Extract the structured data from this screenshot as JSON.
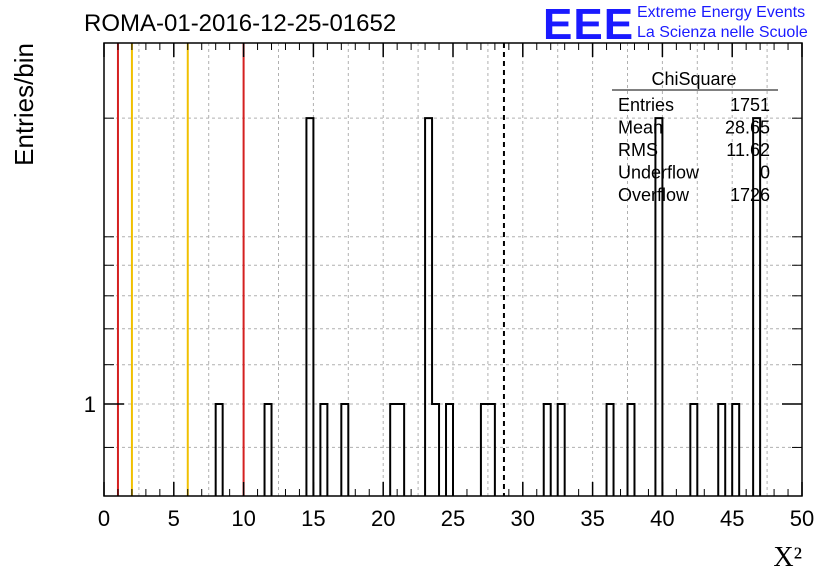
{
  "title": "ROMA-01-2016-12-25-01652",
  "logo": {
    "mark": "EEE",
    "line1": "Extreme Energy Events",
    "line2": "La Scienza nelle Scuole"
  },
  "colors": {
    "red": "#d42020",
    "orange": "#f0c000",
    "axis": "#000000",
    "grid": "#b0b0b0"
  },
  "chart_data": {
    "type": "bar",
    "title": "ROMA-01-2016-12-25-01652",
    "xlabel": "X²",
    "ylabel": "Entries/bin",
    "xlim": [
      0,
      50
    ],
    "x_ticks": [
      "0",
      "5",
      "10",
      "15",
      "20",
      "25",
      "30",
      "35",
      "40",
      "45",
      "50"
    ],
    "y_scale": "log",
    "ylim": [
      0.8,
      2.4
    ],
    "y_tick_labels": [
      {
        "value": 1,
        "label": "1"
      }
    ],
    "bin_width": 0.5,
    "bins": [
      {
        "x": 8.0,
        "count": 1
      },
      {
        "x": 11.5,
        "count": 1
      },
      {
        "x": 14.5,
        "count": 2
      },
      {
        "x": 15.5,
        "count": 1
      },
      {
        "x": 17.0,
        "count": 1
      },
      {
        "x": 20.5,
        "count": 1
      },
      {
        "x": 21.0,
        "count": 1
      },
      {
        "x": 23.0,
        "count": 2
      },
      {
        "x": 23.5,
        "count": 1
      },
      {
        "x": 24.5,
        "count": 1
      },
      {
        "x": 27.0,
        "count": 1
      },
      {
        "x": 27.5,
        "count": 1
      },
      {
        "x": 31.5,
        "count": 1
      },
      {
        "x": 32.5,
        "count": 1
      },
      {
        "x": 36.0,
        "count": 1
      },
      {
        "x": 37.5,
        "count": 1
      },
      {
        "x": 39.5,
        "count": 2
      },
      {
        "x": 42.0,
        "count": 1
      },
      {
        "x": 44.0,
        "count": 1
      },
      {
        "x": 45.0,
        "count": 1
      },
      {
        "x": 46.5,
        "count": 2
      }
    ],
    "vertical_lines": [
      {
        "x": 1.0,
        "color": "red"
      },
      {
        "x": 2.0,
        "color": "orange"
      },
      {
        "x": 6.0,
        "color": "orange"
      },
      {
        "x": 10.0,
        "color": "red"
      },
      {
        "x": 28.65,
        "color": "black",
        "style": "dashed"
      }
    ],
    "grid": true,
    "stats_box": {
      "title": "ChiSquare",
      "rows": [
        {
          "label": "Entries",
          "value": "1751"
        },
        {
          "label": "Mean",
          "value": "28.65"
        },
        {
          "label": "RMS",
          "value": "11.62"
        },
        {
          "label": "Underflow",
          "value": "0"
        },
        {
          "label": "Overflow",
          "value": "1726"
        }
      ]
    }
  }
}
